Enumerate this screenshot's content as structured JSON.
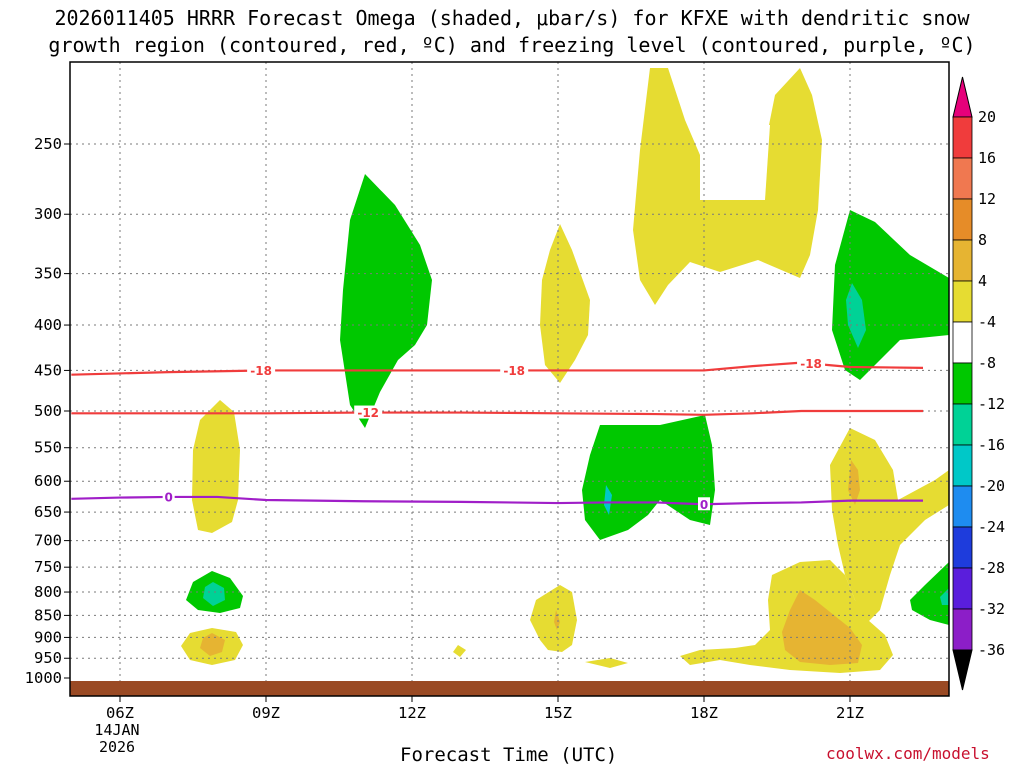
{
  "title_line1": "2026011405 HRRR Forecast Omega (shaded, μbar/s) for KFXE with dendritic snow",
  "title_line2": "growth region (contoured, red, ºC) and freezing level (contoured, purple, ºC)",
  "xaxis_label": "Forecast Time (UTC)",
  "credit": "coolwx.com/models",
  "date_sublabel": [
    "14JAN",
    "2026"
  ],
  "chart_data": {
    "type": "contour",
    "y_axis": {
      "label": "",
      "scale": "log-pressure",
      "range_hPa": [
        1000,
        200
      ],
      "ticks": [
        "250",
        "300",
        "350",
        "400",
        "450",
        "500",
        "550",
        "600",
        "650",
        "700",
        "750",
        "800",
        "850",
        "900",
        "950",
        "1000"
      ]
    },
    "x_axis": {
      "label": "Forecast Time (UTC)",
      "range_hours": [
        5,
        22.5
      ],
      "ticks": [
        {
          "hour": 6,
          "label": "06Z"
        },
        {
          "hour": 9,
          "label": "09Z"
        },
        {
          "hour": 12,
          "label": "12Z"
        },
        {
          "hour": 15,
          "label": "15Z"
        },
        {
          "hour": 18,
          "label": "18Z"
        },
        {
          "hour": 21,
          "label": "21Z"
        }
      ]
    },
    "contours": [
      {
        "name": "-18",
        "color": "#f03c3c",
        "type": "temperature",
        "hours": [
          5,
          7,
          9,
          11,
          13,
          15,
          17,
          18,
          19,
          20,
          21,
          22.5
        ],
        "pressure_hPa": [
          455,
          452,
          450,
          450,
          450,
          450,
          450,
          450,
          445,
          441,
          446,
          447
        ],
        "labels": [
          {
            "hour": 8.9,
            "text": "-18"
          },
          {
            "hour": 14.1,
            "text": "-18"
          },
          {
            "hour": 20.2,
            "text": "-18"
          }
        ]
      },
      {
        "name": "-12",
        "color": "#f03c3c",
        "type": "temperature",
        "hours": [
          5,
          7,
          9,
          11,
          13,
          15,
          17,
          18,
          19,
          20,
          21,
          22.5
        ],
        "pressure_hPa": [
          503,
          503,
          503,
          502,
          502,
          503,
          504,
          505,
          503,
          500,
          500,
          500
        ],
        "labels": [
          {
            "hour": 11.1,
            "text": "-12"
          }
        ]
      },
      {
        "name": "0",
        "color": "#a01ec8",
        "type": "freezing-level",
        "hours": [
          5,
          6,
          7,
          8,
          9,
          11,
          13,
          15,
          16,
          17,
          18,
          19,
          20,
          21,
          22.5
        ],
        "pressure_hPa": [
          628,
          626,
          625,
          625,
          630,
          632,
          633,
          635,
          634,
          634,
          637,
          635,
          634,
          631,
          631
        ],
        "labels": [
          {
            "hour": 7.0,
            "text": "0"
          },
          {
            "hour": 18.0,
            "text": "0"
          }
        ]
      }
    ],
    "colorbar": {
      "ticks": [
        "20",
        "16",
        "12",
        "8",
        "4",
        "-4",
        "-8",
        "-12",
        "-16",
        "-20",
        "-24",
        "-28",
        "-32",
        "-36"
      ],
      "colors": [
        "#e6007a",
        "#f03c3c",
        "#f07850",
        "#e68c28",
        "#e6b432",
        "#e6dc32",
        "#ffffff",
        "#00c800",
        "#00d296",
        "#00c8c8",
        "#1e8cf0",
        "#1e3cdc",
        "#5a1edc",
        "#8c1ec8",
        "#aa1ec8",
        "#a0a0a0",
        "#000000"
      ]
    },
    "shading_legend": {
      "4_to_8": "#e6dc32",
      "8_to_12": "#e6b432",
      "-4_to_-8": "#00c800",
      "-8_to_-12": "#00d296",
      "-12_to_-16": "#00c8c8"
    },
    "grid": true
  }
}
